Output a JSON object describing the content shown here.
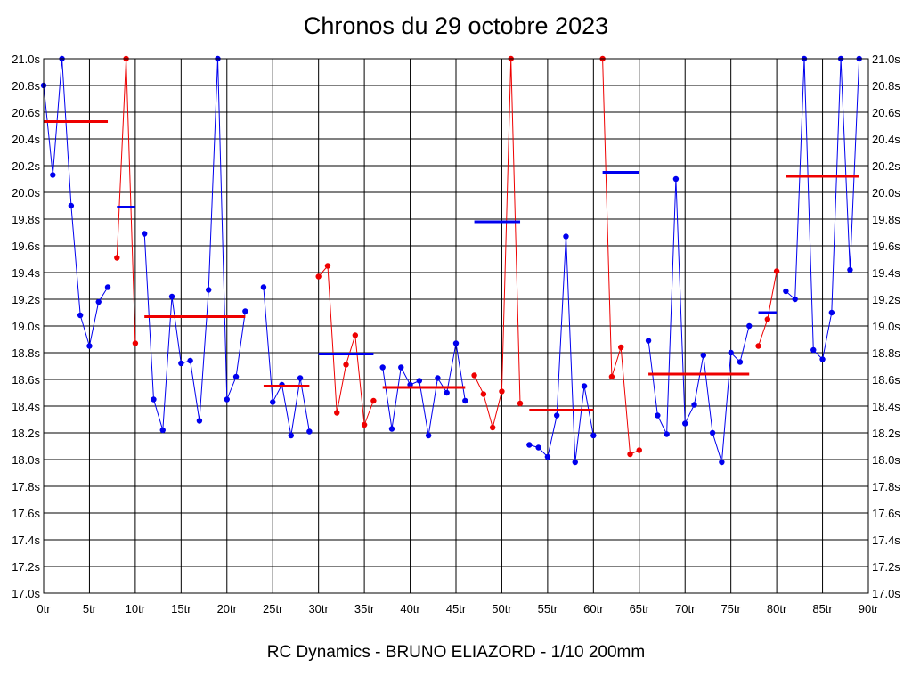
{
  "chart_data": {
    "type": "line",
    "title": "Chronos du 29 octobre 2023",
    "footer": "RC Dynamics - BRUNO ELIAZORD - 1/10 200mm",
    "xlabel": "",
    "ylabel": "",
    "xlim": [
      0,
      90
    ],
    "ylim": [
      17.0,
      21.0
    ],
    "grid": true,
    "legend": "none",
    "x_ticks": [
      0,
      5,
      10,
      15,
      20,
      25,
      30,
      35,
      40,
      45,
      50,
      55,
      60,
      65,
      70,
      75,
      80,
      85,
      90
    ],
    "x_tick_labels": [
      "0tr",
      "5tr",
      "10tr",
      "15tr",
      "20tr",
      "25tr",
      "30tr",
      "35tr",
      "40tr",
      "45tr",
      "50tr",
      "55tr",
      "60tr",
      "65tr",
      "70tr",
      "75tr",
      "80tr",
      "85tr",
      "90tr"
    ],
    "y_ticks": [
      17.0,
      17.2,
      17.4,
      17.6,
      17.8,
      18.0,
      18.2,
      18.4,
      18.6,
      18.8,
      19.0,
      19.2,
      19.4,
      19.6,
      19.8,
      20.0,
      20.2,
      20.4,
      20.6,
      20.8,
      21.0
    ],
    "y_tick_labels": [
      "17.0s",
      "17.2s",
      "17.4s",
      "17.6s",
      "17.8s",
      "18.0s",
      "18.2s",
      "18.4s",
      "18.6s",
      "18.8s",
      "19.0s",
      "19.2s",
      "19.4s",
      "19.6s",
      "19.8s",
      "20.0s",
      "20.2s",
      "20.4s",
      "20.6s",
      "20.8s",
      "21.0s"
    ],
    "colors": {
      "blue": "#0000ee",
      "red": "#ee0000",
      "grid": "#000000"
    },
    "segments": [
      {
        "color": "blue",
        "points": [
          [
            0,
            20.8
          ],
          [
            1,
            20.13
          ],
          [
            2,
            21.0
          ],
          [
            3,
            19.9
          ],
          [
            4,
            19.08
          ],
          [
            5,
            18.85
          ],
          [
            6,
            19.18
          ],
          [
            7,
            19.29
          ]
        ]
      },
      {
        "color": "red",
        "points": [
          [
            8,
            19.51
          ],
          [
            9,
            21.0
          ],
          [
            10,
            18.87
          ]
        ]
      },
      {
        "color": "blue",
        "points": [
          [
            11,
            19.69
          ],
          [
            12,
            18.45
          ],
          [
            13,
            18.22
          ],
          [
            14,
            19.22
          ],
          [
            15,
            18.72
          ],
          [
            16,
            18.74
          ],
          [
            17,
            18.29
          ],
          [
            18,
            19.27
          ],
          [
            19,
            21.0
          ],
          [
            20,
            18.45
          ],
          [
            21,
            18.62
          ],
          [
            22,
            19.11
          ]
        ]
      },
      {
        "color": "blue",
        "points": [
          [
            24,
            19.29
          ],
          [
            25,
            18.43
          ],
          [
            26,
            18.56
          ],
          [
            27,
            18.18
          ],
          [
            28,
            18.61
          ],
          [
            29,
            18.21
          ]
        ]
      },
      {
        "color": "red",
        "points": [
          [
            30,
            19.37
          ],
          [
            31,
            19.45
          ],
          [
            32,
            18.35
          ],
          [
            33,
            18.71
          ],
          [
            34,
            18.93
          ],
          [
            35,
            18.26
          ],
          [
            36,
            18.44
          ]
        ]
      },
      {
        "color": "blue",
        "points": [
          [
            37,
            18.69
          ],
          [
            38,
            18.23
          ],
          [
            39,
            18.69
          ],
          [
            40,
            18.56
          ],
          [
            41,
            18.59
          ],
          [
            42,
            18.18
          ],
          [
            43,
            18.61
          ],
          [
            44,
            18.5
          ],
          [
            45,
            18.87
          ],
          [
            46,
            18.44
          ]
        ]
      },
      {
        "color": "red",
        "points": [
          [
            47,
            18.63
          ],
          [
            48,
            18.49
          ],
          [
            49,
            18.24
          ],
          [
            50,
            18.51
          ],
          [
            51,
            21.0
          ],
          [
            52,
            18.42
          ]
        ]
      },
      {
        "color": "blue",
        "points": [
          [
            53,
            18.11
          ],
          [
            54,
            18.09
          ],
          [
            55,
            18.02
          ],
          [
            56,
            18.33
          ],
          [
            57,
            19.67
          ],
          [
            58,
            17.98
          ],
          [
            59,
            18.55
          ],
          [
            60,
            18.18
          ]
        ]
      },
      {
        "color": "red",
        "points": [
          [
            61,
            21.0
          ],
          [
            62,
            18.62
          ],
          [
            63,
            18.84
          ],
          [
            64,
            18.04
          ],
          [
            65,
            18.07
          ]
        ]
      },
      {
        "color": "blue",
        "points": [
          [
            66,
            18.89
          ],
          [
            67,
            18.33
          ],
          [
            68,
            18.19
          ],
          [
            69,
            20.1
          ],
          [
            70,
            18.27
          ],
          [
            71,
            18.41
          ],
          [
            72,
            18.78
          ],
          [
            73,
            18.2
          ],
          [
            74,
            17.98
          ],
          [
            75,
            18.8
          ],
          [
            76,
            18.73
          ],
          [
            77,
            19.0
          ]
        ]
      },
      {
        "color": "red",
        "points": [
          [
            78,
            18.85
          ],
          [
            79,
            19.05
          ],
          [
            80,
            19.41
          ]
        ]
      },
      {
        "color": "blue",
        "points": [
          [
            81,
            19.26
          ],
          [
            82,
            19.2
          ],
          [
            83,
            21.0
          ],
          [
            84,
            18.82
          ],
          [
            85,
            18.75
          ],
          [
            86,
            19.1
          ],
          [
            87,
            21.0
          ],
          [
            88,
            19.42
          ],
          [
            89,
            21.0
          ]
        ]
      }
    ],
    "averages": [
      {
        "color": "red",
        "x": [
          0,
          7
        ],
        "y": 20.53
      },
      {
        "color": "blue",
        "x": [
          8,
          10
        ],
        "y": 19.89
      },
      {
        "color": "red",
        "x": [
          11,
          22
        ],
        "y": 19.07
      },
      {
        "color": "red",
        "x": [
          24,
          29
        ],
        "y": 18.55
      },
      {
        "color": "blue",
        "x": [
          30,
          36
        ],
        "y": 18.79
      },
      {
        "color": "red",
        "x": [
          37,
          46
        ],
        "y": 18.54
      },
      {
        "color": "blue",
        "x": [
          47,
          52
        ],
        "y": 19.78
      },
      {
        "color": "red",
        "x": [
          53,
          60
        ],
        "y": 18.37
      },
      {
        "color": "blue",
        "x": [
          61,
          65
        ],
        "y": 20.15
      },
      {
        "color": "red",
        "x": [
          66,
          77
        ],
        "y": 18.64
      },
      {
        "color": "blue",
        "x": [
          78,
          80
        ],
        "y": 19.1
      },
      {
        "color": "red",
        "x": [
          81,
          89
        ],
        "y": 20.12
      }
    ]
  }
}
